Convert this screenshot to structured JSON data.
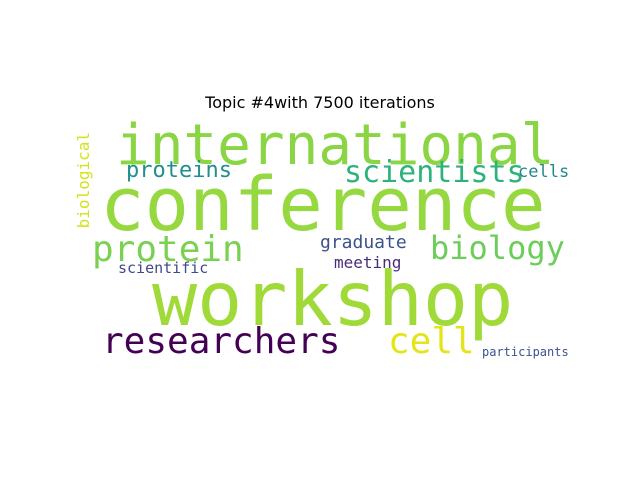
{
  "title": "Topic #4with 7500 iterations",
  "words": {
    "international": "international",
    "conference": "conference",
    "workshop": "workshop",
    "scientists": "scientists",
    "proteins": "proteins",
    "cells": "cells",
    "biological": "biological",
    "protein": "protein",
    "biology": "biology",
    "graduate": "graduate",
    "meeting": "meeting",
    "scientific": "scientific",
    "researchers": "researchers",
    "cell": "cell",
    "participants": "participants"
  },
  "colors": {
    "background": "#ffffff",
    "title": "#000000",
    "international": "#8ad543",
    "conference": "#95d840",
    "workshop": "#a0da39",
    "scientists": "#2db27d",
    "proteins": "#218f8c",
    "cells": "#23888e",
    "biological": "#d5e21a",
    "protein": "#7ad151",
    "biology": "#6ccd5a",
    "graduate": "#3b528b",
    "meeting": "#472d7b",
    "scientific": "#3e4a89",
    "researchers": "#440154",
    "cell": "#e5e419",
    "participants": "#3b528b"
  }
}
